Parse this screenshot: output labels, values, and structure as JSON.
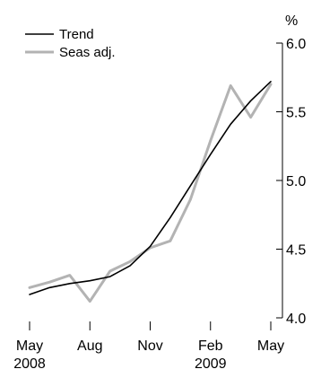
{
  "chart_data": {
    "type": "line",
    "title": "",
    "xlabel": "",
    "ylabel": "%",
    "ylim": [
      4.0,
      6.0
    ],
    "yticks": [
      "4.0",
      "4.5",
      "5.0",
      "5.5",
      "6.0"
    ],
    "x": [
      "May 2008",
      "Jun 2008",
      "Jul 2008",
      "Aug 2008",
      "Sep 2008",
      "Oct 2008",
      "Nov 2008",
      "Dec 2008",
      "Jan 2009",
      "Feb 2009",
      "Mar 2009",
      "Apr 2009",
      "May 2009"
    ],
    "xticks": [
      {
        "month": "May",
        "year": "2008",
        "index": 0
      },
      {
        "month": "Aug",
        "year": "",
        "index": 3
      },
      {
        "month": "Nov",
        "year": "",
        "index": 6
      },
      {
        "month": "Feb",
        "year": "2009",
        "index": 9
      },
      {
        "month": "May",
        "year": "",
        "index": 12
      }
    ],
    "series": [
      {
        "name": "Trend",
        "color": "#000000",
        "values": [
          4.17,
          4.22,
          4.25,
          4.27,
          4.3,
          4.38,
          4.52,
          4.73,
          4.96,
          5.19,
          5.41,
          5.58,
          5.72
        ]
      },
      {
        "name": "Seas adj.",
        "color": "#b3b3b3",
        "values": [
          4.22,
          4.26,
          4.31,
          4.12,
          4.34,
          4.41,
          4.51,
          4.56,
          4.86,
          5.29,
          5.69,
          5.46,
          5.7
        ]
      }
    ],
    "grid": false,
    "legend_position": "top-left"
  }
}
